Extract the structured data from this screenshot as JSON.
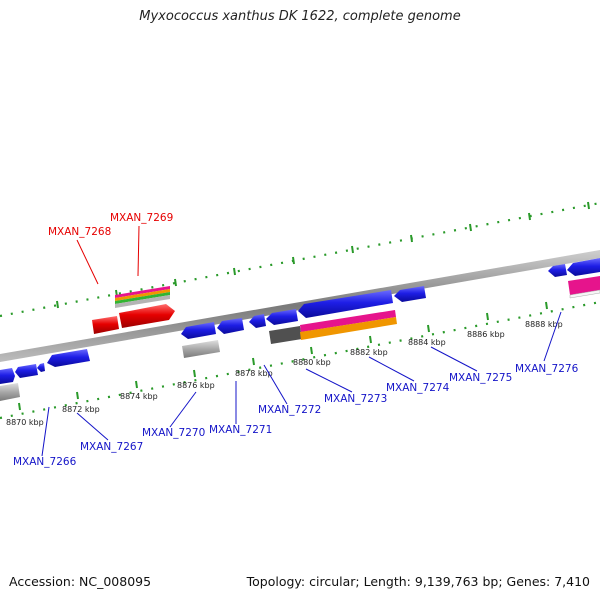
{
  "title": "Myxococcus xanthus DK 1622, complete genome",
  "footer": {
    "accession": "Accession: NC_008095",
    "stats": "Topology: circular; Length: 9,139,763 bp; Genes: 7,410"
  },
  "colors": {
    "gene_blue": "#1e1ee6",
    "gene_red": "#e60000",
    "gene_gray": "#a0a0a0",
    "dark_gray": "#505050",
    "magenta": "#e6148c",
    "orange": "#f09600",
    "green": "#32b432",
    "tick_green": "#2a9a2a",
    "backbone": "#8c8c8c"
  },
  "kbp_labels": [
    "8870 kbp",
    "8872 kbp",
    "8874 kbp",
    "8876 kbp",
    "8878 kbp",
    "8880 kbp",
    "8882 kbp",
    "8884 kbp",
    "8886 kbp",
    "8888 kbp"
  ],
  "gene_labels": {
    "red": [
      "MXAN_7268",
      "MXAN_7269"
    ],
    "blue": [
      "MXAN_7266",
      "MXAN_7267",
      "MXAN_7270",
      "MXAN_7271",
      "MXAN_7272",
      "MXAN_7273",
      "MXAN_7274",
      "MXAN_7275",
      "MXAN_7276"
    ]
  }
}
